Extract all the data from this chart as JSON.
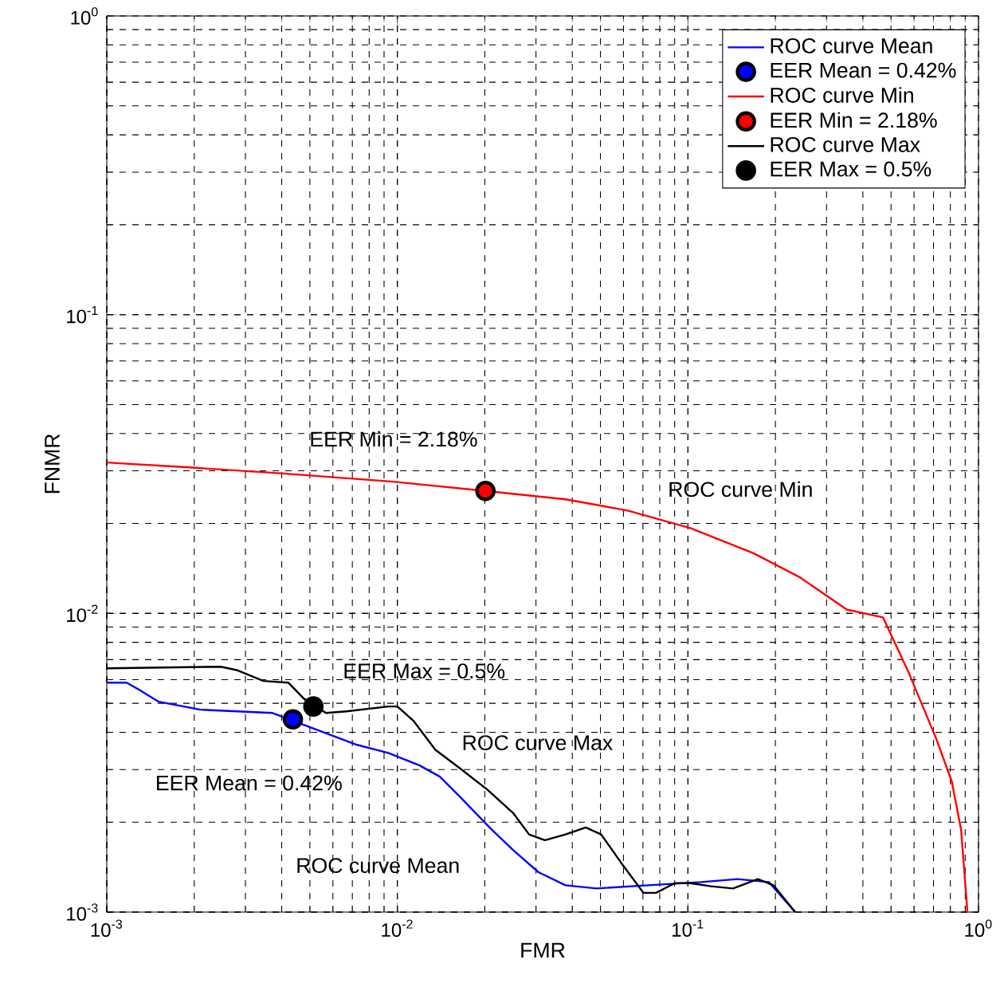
{
  "chart_data": {
    "type": "line",
    "xlabel": "FMR",
    "ylabel": "FNMR",
    "log": "xy",
    "grid": true,
    "legend": "top right",
    "line_style": "solid",
    "xlim": [
      0.001,
      1
    ],
    "ylim": [
      0.001,
      1
    ],
    "xticks": [
      {
        "value": 0.001,
        "label": "10$^{-3}$"
      },
      {
        "value": 0.01,
        "label": "10$^{-2}$"
      },
      {
        "value": 0.1,
        "label": "10$^{-1}$"
      },
      {
        "value": 1,
        "label": "10$^{0}$"
      }
    ],
    "yticks": [
      {
        "value": 0.001,
        "label": "10$^{-3}$"
      },
      {
        "value": 0.01,
        "label": "10$^{-2}$"
      },
      {
        "value": 0.1,
        "label": "10$^{-1}$"
      },
      {
        "value": 1,
        "label": "10$^{0}$"
      }
    ],
    "series": [
      {
        "name": "ROC curve Mean",
        "color": "#0000ff",
        "x": [
          0.001,
          0.00117,
          0.00128,
          0.00151,
          0.0021,
          0.00372,
          0.0052,
          0.00727,
          0.00931,
          0.0119,
          0.014,
          0.0165,
          0.0211,
          0.0251,
          0.0306,
          0.0379,
          0.0485,
          0.073,
          0.111,
          0.148,
          0.19,
          0.234
        ],
        "values": [
          0.00586,
          0.00586,
          0.00558,
          0.00506,
          0.00476,
          0.00464,
          0.0041,
          0.00363,
          0.00341,
          0.0031,
          0.00284,
          0.00242,
          0.00189,
          0.00161,
          0.00136,
          0.00123,
          0.0012,
          0.00123,
          0.00126,
          0.00129,
          0.00126,
          0.001
        ]
      },
      {
        "name": "EER Mean = 0.42%",
        "type": "scatter",
        "marker": "circle",
        "color": "#0000ff",
        "x": [
          0.00437
        ],
        "values": [
          0.00442
        ]
      },
      {
        "name": "ROC curve Min",
        "color": "#ff0000",
        "x": [
          0.001,
          0.00193,
          0.00405,
          0.00966,
          0.0201,
          0.0379,
          0.062,
          0.102,
          0.168,
          0.243,
          0.352,
          0.469,
          0.579,
          0.715,
          0.809,
          0.871,
          0.916
        ],
        "values": [
          0.032,
          0.0308,
          0.0294,
          0.0276,
          0.0257,
          0.0241,
          0.0221,
          0.0193,
          0.0159,
          0.0132,
          0.0103,
          0.0097,
          0.00624,
          0.00381,
          0.00274,
          0.00189,
          0.001
        ]
      },
      {
        "name": "EER Min = 2.18%",
        "type": "scatter",
        "marker": "circle",
        "color": "#ff0000",
        "x": [
          0.0201
        ],
        "values": [
          0.0257
        ]
      },
      {
        "name": "ROC curve Max",
        "color": "#000000",
        "x": [
          0.001,
          0.00247,
          0.0028,
          0.00346,
          0.00422,
          0.00477,
          0.00568,
          0.00667,
          0.00931,
          0.01,
          0.01136,
          0.0135,
          0.0165,
          0.0204,
          0.0251,
          0.0284,
          0.0322,
          0.0379,
          0.0445,
          0.0503,
          0.0599,
          0.0703,
          0.0777,
          0.0901,
          0.102,
          0.12,
          0.143,
          0.174,
          0.197,
          0.234
        ],
        "values": [
          0.00655,
          0.00663,
          0.00646,
          0.00594,
          0.00586,
          0.00518,
          0.00464,
          0.0047,
          0.00488,
          0.00488,
          0.00437,
          0.0035,
          0.00302,
          0.00257,
          0.00214,
          0.00182,
          0.00174,
          0.00182,
          0.00192,
          0.00182,
          0.00143,
          0.00116,
          0.00116,
          0.00125,
          0.00125,
          0.00122,
          0.0012,
          0.00129,
          0.00123,
          0.001
        ]
      },
      {
        "name": "EER Max = 0.5%",
        "type": "scatter",
        "marker": "circle",
        "color": "#000000",
        "x": [
          0.00514
        ],
        "values": [
          0.00488
        ]
      }
    ],
    "annotations": [
      "EER Min = 2.18%",
      "ROC curve Min",
      "EER Max = 0.5%",
      "ROC curve Max",
      "EER Mean = 0.42%",
      "ROC curve Mean"
    ]
  }
}
